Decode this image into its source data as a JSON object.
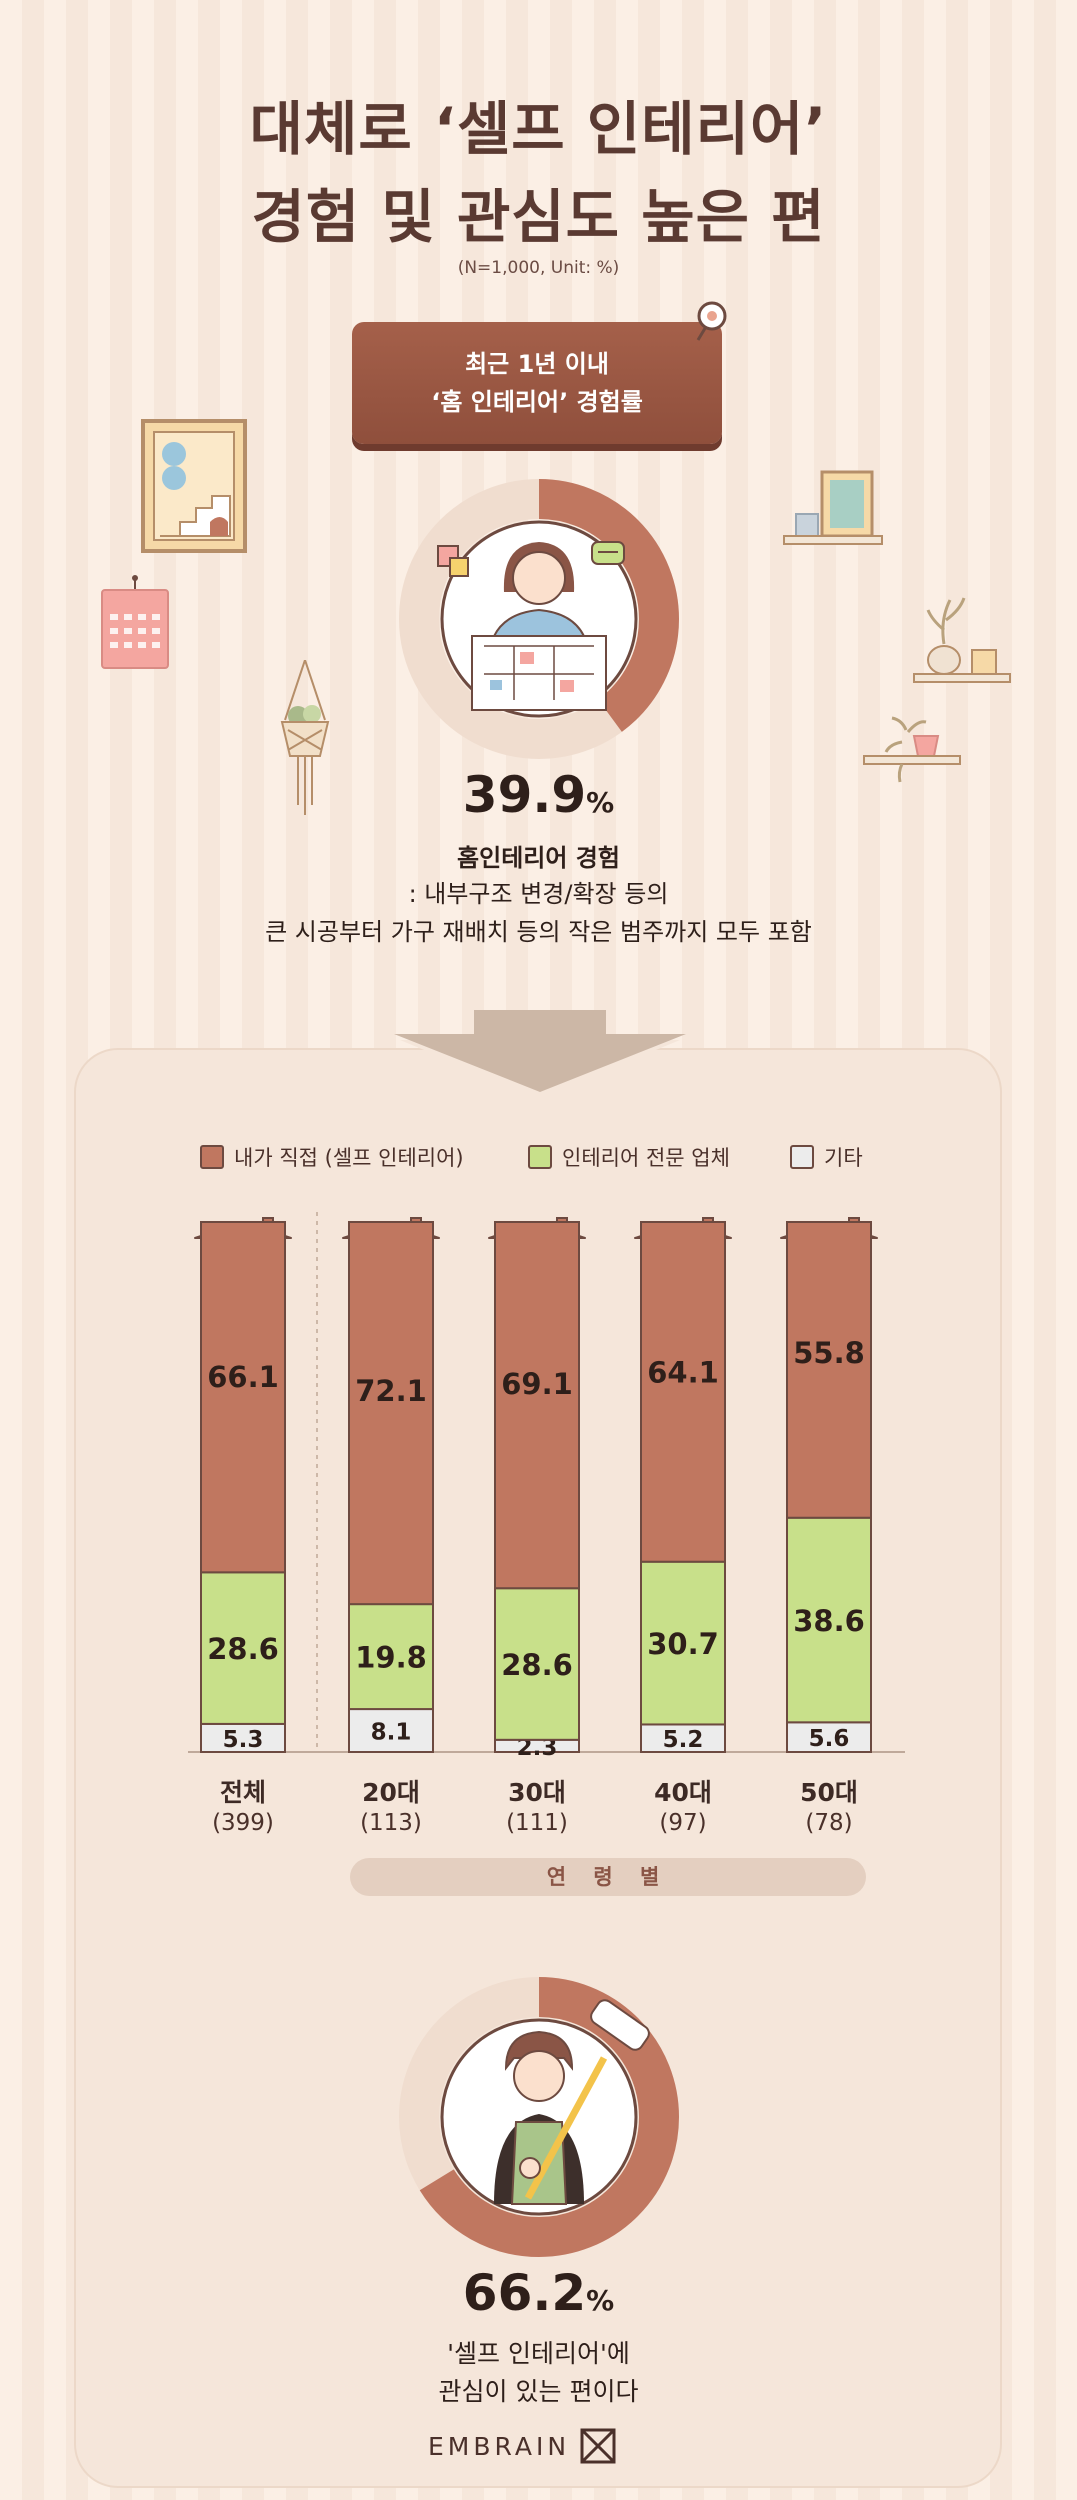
{
  "header": {
    "title_line1": "대체로 ‘셀프 인테리어’",
    "title_line2": "경험 및 관심도 높은 편",
    "note": "(N=1,000, Unit: %)"
  },
  "sign": {
    "line1": "최근 1년 이내",
    "line2": "‘홈 인테리어’ 경험률"
  },
  "experience": {
    "value": 39.9,
    "value_label": "39.9",
    "unit": "%",
    "label": "홈인테리어 경험",
    "desc1": ": 내부구조 변경/확장 등의",
    "desc2": "큰 시공부터 가구 재배치 등의 작은 범주까지 모두 포함"
  },
  "colors": {
    "self": "#c07760",
    "expert": "#c8e08a",
    "other": "#ececec",
    "accent": "#8f4f3c",
    "ring_bg": "#f0ddcf"
  },
  "icons": [
    "house-roof-icon",
    "picture-frame-icon",
    "calendar-icon",
    "hanging-plant-icon",
    "shelf-frame-icon",
    "vase-icon",
    "plant-shelf-icon",
    "down-arrow-icon",
    "pin-icon"
  ],
  "chart_data": {
    "type": "bar",
    "stacked": true,
    "percent_stacked": true,
    "categories": [
      "전체",
      "20대",
      "30대",
      "40대",
      "50대"
    ],
    "category_n": [
      "(399)",
      "(113)",
      "(111)",
      "(97)",
      "(78)"
    ],
    "series": [
      {
        "name": "내가 직접 (셀프 인테리어)",
        "values": [
          66.1,
          72.1,
          69.1,
          64.1,
          55.8
        ]
      },
      {
        "name": "인테리어 전문 업체",
        "values": [
          28.6,
          19.8,
          28.6,
          30.7,
          38.6
        ]
      },
      {
        "name": "기타",
        "values": [
          5.3,
          8.1,
          2.3,
          5.2,
          5.6
        ]
      }
    ],
    "group_label": "연 령 별",
    "legend_position": "top",
    "ylim": [
      0,
      100
    ]
  },
  "interest": {
    "value": 66.2,
    "value_label": "66.2",
    "unit": "%",
    "line1": "'셀프 인테리어'에",
    "line2": "관심이 있는 편이다"
  },
  "footer": {
    "brand": "EMBRAIN"
  }
}
